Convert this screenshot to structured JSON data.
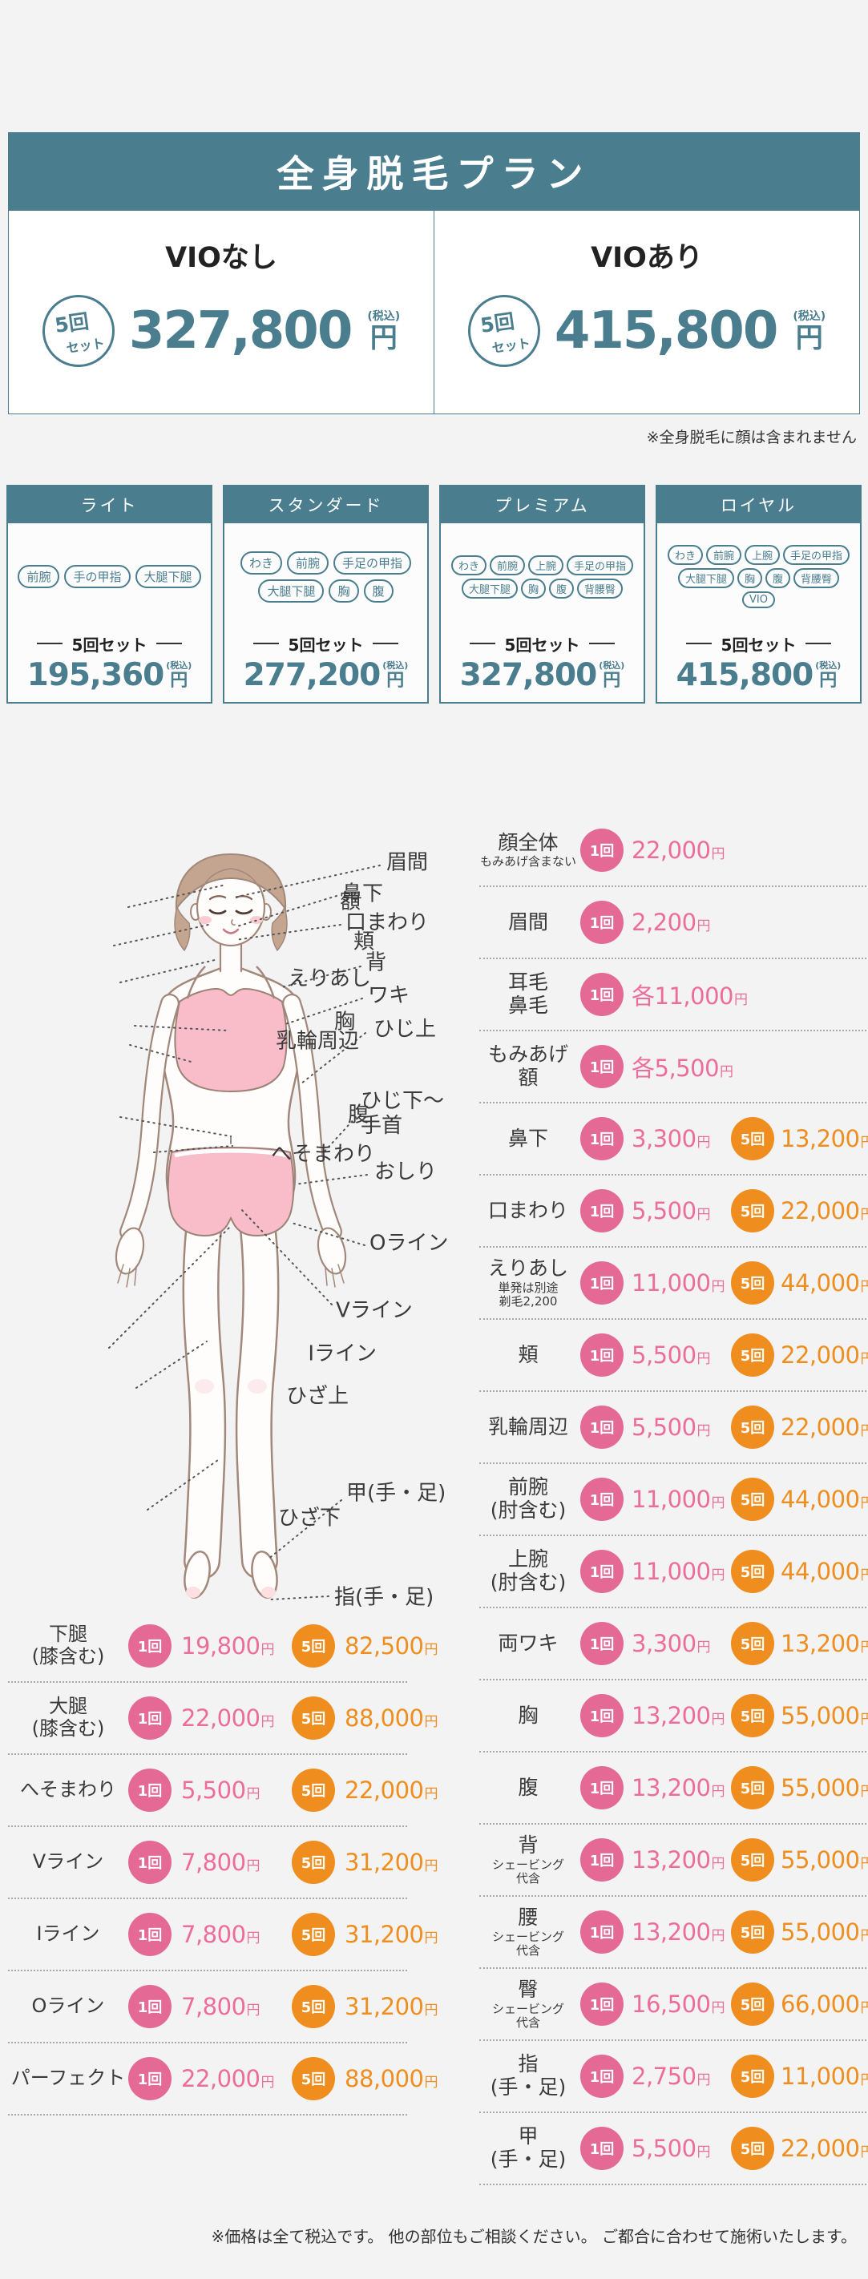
{
  "colors": {
    "teal": "#4a7e8e",
    "pink_circle": "#e46a95",
    "pink_text": "#ed6d9a",
    "orange": "#ef8e1e"
  },
  "header": {
    "title": "全身脱毛プラン"
  },
  "top_note": "※全身脱毛に顔は含まれません",
  "footer_note": "※価格は全て税込です。 他の部位もご相談ください。 ご都合に合わせて施術いたします。",
  "badges": {
    "once": "1回",
    "five": "5回",
    "yen": "円",
    "tax": "(税込)",
    "set_badge_line1": "5回",
    "set_badge_line2": "セット",
    "set_label": "5回セット"
  },
  "full_body_plans": [
    {
      "name": "VIOなし",
      "price": "327,800"
    },
    {
      "name": "VIOあり",
      "price": "415,800"
    }
  ],
  "set_plans": [
    {
      "title": "ライト",
      "tags": [
        "前腕",
        "手の甲指",
        "大腿下腿"
      ],
      "price": "195,360"
    },
    {
      "title": "スタンダード",
      "tags": [
        "わき",
        "前腕",
        "手足の甲指",
        "大腿下腿",
        "胸",
        "腹"
      ],
      "price": "277,200"
    },
    {
      "title": "プレミアム",
      "tags": [
        "わき",
        "前腕",
        "上腕",
        "手足の甲指",
        "大腿下腿",
        "胸",
        "腹",
        "背腰臀"
      ],
      "price": "327,800"
    },
    {
      "title": "ロイヤル",
      "tags": [
        "わき",
        "前腕",
        "上腕",
        "手足の甲指",
        "大腿下腿",
        "胸",
        "腹",
        "背腰臀",
        "VIO"
      ],
      "price": "415,800"
    }
  ],
  "body_diagram": {
    "left_labels": [
      "額",
      "頬",
      "えりあし",
      "胸",
      "乳輪周辺",
      "腹",
      "へそまわり",
      "Iライン",
      "ひざ上",
      "ひざ下"
    ],
    "right_labels": [
      "眉間",
      "鼻下",
      "口まわり",
      "背",
      "ワキ",
      "ひじ上",
      "ひじ下〜\n手首",
      "おしり",
      "Oライン",
      "Vライン",
      "甲(手・足)",
      "指(手・足)"
    ]
  },
  "left_price_list": [
    {
      "label": "下腿\n(膝含む)",
      "sub": "",
      "p1": "19,800",
      "p5": "82,500"
    },
    {
      "label": "大腿\n(膝含む)",
      "sub": "",
      "p1": "22,000",
      "p5": "88,000"
    },
    {
      "label": "へそまわり",
      "sub": "",
      "p1": "5,500",
      "p5": "22,000"
    },
    {
      "label": "Vライン",
      "sub": "",
      "p1": "7,800",
      "p5": "31,200"
    },
    {
      "label": "Iライン",
      "sub": "",
      "p1": "7,800",
      "p5": "31,200"
    },
    {
      "label": "Oライン",
      "sub": "",
      "p1": "7,800",
      "p5": "31,200"
    },
    {
      "label": "パーフェクト",
      "sub": "",
      "p1": "22,000",
      "p5": "88,000"
    }
  ],
  "right_price_list": [
    {
      "label": "顔全体",
      "sub": "もみあげ含まない",
      "p1": "22,000",
      "p5": ""
    },
    {
      "label": "眉間",
      "sub": "",
      "p1": "2,200",
      "p5": ""
    },
    {
      "label": "耳毛\n鼻毛",
      "sub": "",
      "p1": "各11,000",
      "p5": ""
    },
    {
      "label": "もみあげ\n額",
      "sub": "",
      "p1": "各5,500",
      "p5": ""
    },
    {
      "label": "鼻下",
      "sub": "",
      "p1": "3,300",
      "p5": "13,200"
    },
    {
      "label": "口まわり",
      "sub": "",
      "p1": "5,500",
      "p5": "22,000"
    },
    {
      "label": "えりあし",
      "sub": "単発は別途\n剃毛2,200",
      "p1": "11,000",
      "p5": "44,000"
    },
    {
      "label": "頬",
      "sub": "",
      "p1": "5,500",
      "p5": "22,000"
    },
    {
      "label": "乳輪周辺",
      "sub": "",
      "p1": "5,500",
      "p5": "22,000"
    },
    {
      "label": "前腕\n(肘含む)",
      "sub": "",
      "p1": "11,000",
      "p5": "44,000"
    },
    {
      "label": "上腕\n(肘含む)",
      "sub": "",
      "p1": "11,000",
      "p5": "44,000"
    },
    {
      "label": "両ワキ",
      "sub": "",
      "p1": "3,300",
      "p5": "13,200"
    },
    {
      "label": "胸",
      "sub": "",
      "p1": "13,200",
      "p5": "55,000"
    },
    {
      "label": "腹",
      "sub": "",
      "p1": "13,200",
      "p5": "55,000"
    },
    {
      "label": "背",
      "sub": "シェービング\n代含",
      "p1": "13,200",
      "p5": "55,000"
    },
    {
      "label": "腰",
      "sub": "シェービング\n代含",
      "p1": "13,200",
      "p5": "55,000"
    },
    {
      "label": "臀",
      "sub": "シェービング\n代含",
      "p1": "16,500",
      "p5": "66,000"
    },
    {
      "label": "指\n(手・足)",
      "sub": "",
      "p1": "2,750",
      "p5": "11,000"
    },
    {
      "label": "甲\n(手・足)",
      "sub": "",
      "p1": "5,500",
      "p5": "22,000"
    }
  ]
}
